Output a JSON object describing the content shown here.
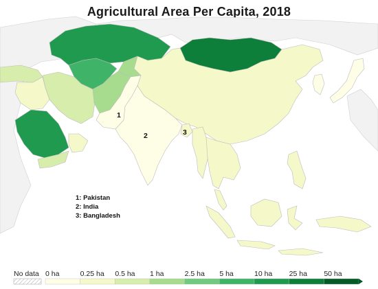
{
  "title": "Agricultural Area Per Capita, 2018",
  "notes": [
    "1: Pakistan",
    "2: India",
    "3: Bangladesh"
  ],
  "map_labels": {
    "pakistan": "1",
    "india": "2",
    "bangladesh": "3"
  },
  "legend": {
    "no_data": "No data",
    "ticks": [
      "0 ha",
      "0.25 ha",
      "0.5 ha",
      "1 ha",
      "2.5 ha",
      "5 ha",
      "10 ha",
      "25 ha",
      "50 ha"
    ],
    "colors": [
      "#fefee6",
      "#f5f8c8",
      "#d6edab",
      "#a7dc8f",
      "#6fca80",
      "#3fb468",
      "#1f9a4e",
      "#0d7f3a",
      "#055a28"
    ]
  },
  "colors": {
    "land_other": "#f2f2f2",
    "border": "#bdbdbd"
  }
}
